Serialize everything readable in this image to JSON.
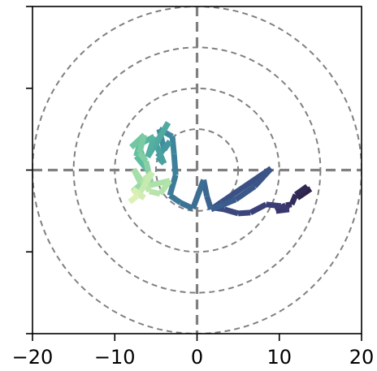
{
  "chart_data": {
    "type": "line",
    "title": "",
    "xlabel": "",
    "ylabel": "",
    "xlim": [
      -20,
      20
    ],
    "ylim": [
      -20,
      20
    ],
    "x_ticks": [
      -20,
      -10,
      0,
      10,
      20
    ],
    "x_tick_labels": [
      "−20",
      "−10",
      "0",
      "10",
      "20"
    ],
    "y_ticks": [
      -20,
      -10,
      0,
      10,
      20
    ],
    "y_tick_labels": [
      "",
      "",
      "",
      "",
      ""
    ],
    "grid": false,
    "reference_lines": {
      "x": 0,
      "y": 0,
      "style": "dashed",
      "color": "#808080"
    },
    "rings": {
      "radii": [
        5,
        10,
        15,
        20
      ],
      "center": [
        0,
        0
      ],
      "style": "dashed",
      "color": "#808080"
    },
    "colormap": [
      "#2a1a3c",
      "#3c3d77",
      "#3a5f8e",
      "#3f8ea0",
      "#5cbd9f",
      "#a7dfa8",
      "#dcf1b6"
    ],
    "series": [
      {
        "x": [
          13.2,
          12.6,
          13.8,
          12.2,
          13.4,
          12.0,
          11.5,
          10.8,
          9.6,
          11.2,
          10.2,
          8.4,
          6.5,
          5.0,
          3.3,
          2.0,
          3.0,
          9.0,
          7.0,
          4.7,
          3.0,
          1.7,
          1.2,
          0.8,
          -0.5,
          -2.0,
          -3.3,
          -2.6,
          -2.8,
          -3.0,
          -4.6,
          -4.0,
          -3.3,
          -4.8,
          -4.0,
          -5.0,
          -3.5,
          -6.0,
          -5.2,
          -7.1,
          -6.1,
          -7.4,
          -6.8,
          -8.0,
          -6.4,
          -7.0,
          -6.2,
          -5.6,
          -7.8,
          -6.8,
          -7.7,
          -6.3,
          -3.3,
          -4.5,
          -5.8,
          -6.5,
          -5.4,
          -7.1,
          -6.4,
          -7.8,
          -7.2,
          -8.2
        ],
        "y": [
          -2.2,
          -2.9,
          -2.3,
          -3.4,
          -2.0,
          -3.0,
          -4.2,
          -4.3,
          -5.0,
          -4.8,
          -4.4,
          -4.2,
          -5.2,
          -5.3,
          -4.8,
          -4.6,
          -3.9,
          0.2,
          -2.0,
          -3.6,
          -4.3,
          -4.8,
          -3.2,
          -1.2,
          -4.7,
          -4.0,
          -3.1,
          -0.6,
          2.0,
          4.1,
          5.0,
          2.5,
          3.5,
          1.6,
          0.8,
          3.2,
          5.8,
          1.6,
          4.1,
          3.1,
          0.1,
          1.7,
          3.8,
          2.8,
          4.3,
          2.1,
          1.1,
          -1.5,
          -2.6,
          -1.7,
          0.1,
          -2.0,
          -1.3,
          -2.9,
          -2.6,
          -1.2,
          -0.3,
          -3.0,
          -3.4,
          -2.3,
          -3.1,
          -3.9
        ]
      }
    ]
  }
}
